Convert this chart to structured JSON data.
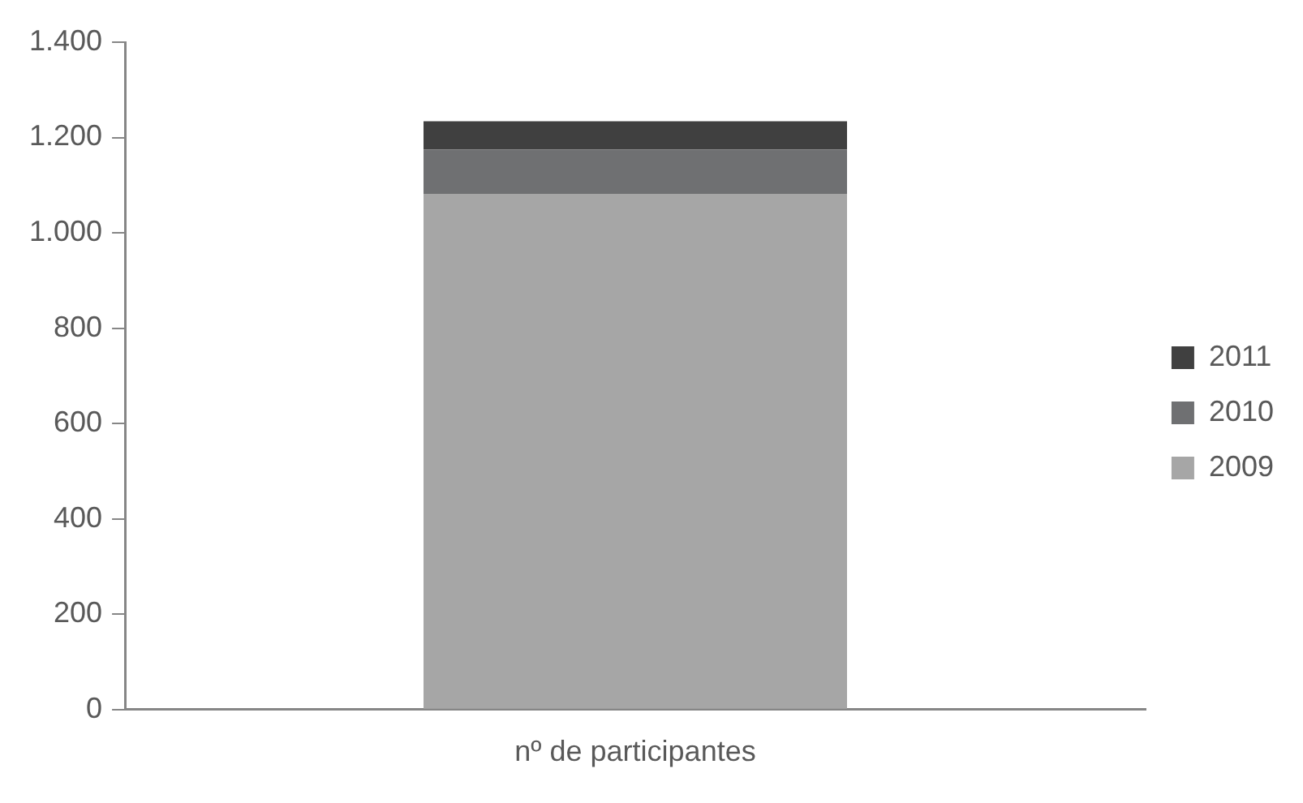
{
  "chart_data": {
    "type": "bar",
    "stacked": true,
    "categories": [
      "nº de participantes"
    ],
    "series": [
      {
        "name": "2009",
        "color": "#a6a6a6",
        "values": [
          1082
        ]
      },
      {
        "name": "2010",
        "color": "#6f7072",
        "values": [
          93
        ]
      },
      {
        "name": "2011",
        "color": "#404040",
        "values": [
          59
        ]
      }
    ],
    "ylim": [
      0,
      1400
    ],
    "yticks": [
      0,
      200,
      400,
      600,
      800,
      {
        "value": 1000,
        "label": "1.000"
      },
      {
        "value": 1200,
        "label": "1.200"
      },
      {
        "value": 1400,
        "label": "1.400"
      }
    ],
    "grid": false,
    "legend": "right"
  }
}
